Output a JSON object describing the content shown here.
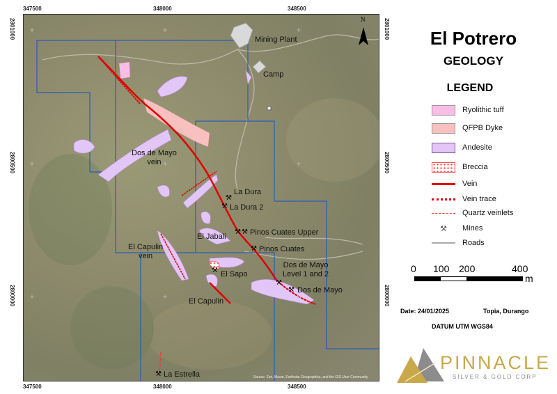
{
  "title": "El Potrero",
  "subtitle": "GEOLOGY",
  "legend_title": "LEGEND",
  "legend": [
    {
      "label": "Ryolithic tuff",
      "color": "#f9bde6"
    },
    {
      "label": "QFPB Dyke",
      "color": "#f9c0c0"
    },
    {
      "label": "Andesite",
      "color": "#e2c6f7"
    },
    {
      "label": "Breccia",
      "color": "#ff2020"
    },
    {
      "label": "Vein",
      "color": "#e00000"
    },
    {
      "label": "Vein trace",
      "color": "#e00000"
    },
    {
      "label": "Quartz veinlets",
      "color": "#ff3030"
    },
    {
      "label": "Mines",
      "icon": "pickaxe-icon"
    },
    {
      "label": "Roads",
      "color": "#aaaaaa"
    }
  ],
  "scale": {
    "labels": [
      "0",
      "100",
      "200",
      "400"
    ],
    "unit": "m"
  },
  "date": "Date: 24/01/2025",
  "location": "Topia, Durango",
  "datum": "DATUM UTM WGS84",
  "logo": {
    "name": "PINNACLE",
    "tagline": "SILVER & GOLD CORP"
  },
  "axes": {
    "x_ticks": [
      "347500",
      "348000",
      "348500"
    ],
    "y_ticks": [
      "2801000",
      "2800500",
      "2800000"
    ]
  },
  "north": "N",
  "attribution": "Source: Esri, Maxar, Earthstar Geographics, and the GIS User Community",
  "map_labels": {
    "mining_plant": "Mining Plant",
    "camp": "Camp",
    "dos_de_mayo_vein_1": "Dos de Mayo",
    "dos_de_mayo_vein_2": "vein",
    "la_dura": "La Dura",
    "la_dura_2": "La Dura 2",
    "pinos_cuates_upper": "Pinos Cuates Upper",
    "el_jabali": "El Jabali",
    "pinos_cuates": "Pinos Cuates",
    "el_capulin_vein_1": "El Capulin",
    "el_capulin_vein_2": "vein",
    "dos_de_mayo_level_1": "Dos de Mayo",
    "dos_de_mayo_level_2": "Level 1 and 2",
    "el_sapo": "El Sapo",
    "dos_de_mayo": "Dos de Mayo",
    "el_capulin": "El Capulin",
    "la_estrella": "La Estrella"
  }
}
